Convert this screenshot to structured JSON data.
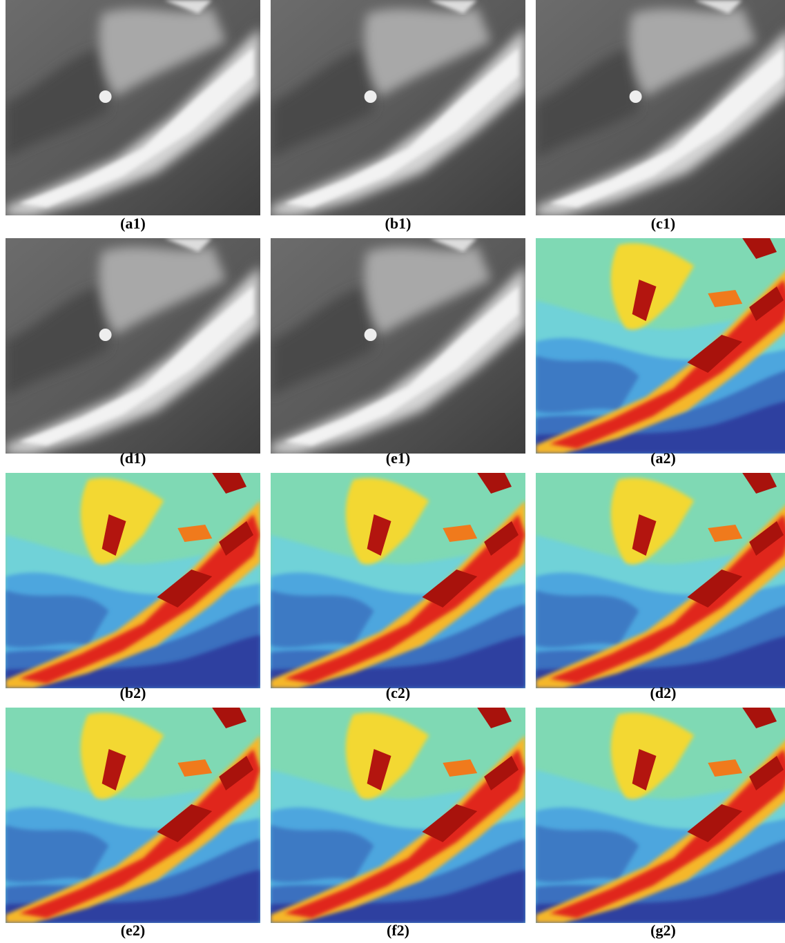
{
  "panels": [
    {
      "label": "(a1)"
    },
    {
      "label": "(b1)"
    },
    {
      "label": "(c1)"
    },
    {
      "label": "(d1)"
    },
    {
      "label": "(e1)"
    },
    {
      "label": "(a2)"
    },
    {
      "label": "(b2)"
    },
    {
      "label": "(c2)"
    },
    {
      "label": "(d2)"
    },
    {
      "label": "(e2)"
    },
    {
      "label": "(f2)"
    },
    {
      "label": "(g2)"
    }
  ]
}
